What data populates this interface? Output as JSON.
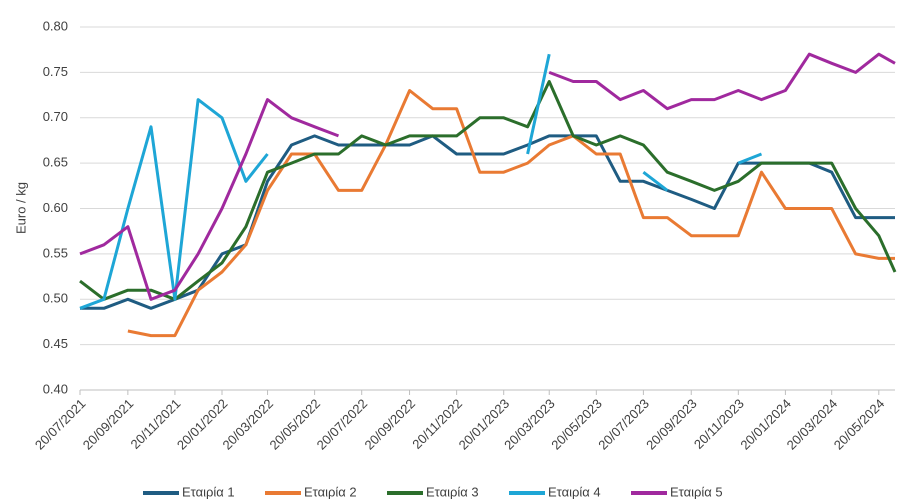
{
  "chart_data": {
    "type": "line",
    "y_label": "Euro / kg",
    "x": [
      "20/07/2021",
      "20/08/2021",
      "20/09/2021",
      "20/10/2021",
      "20/11/2021",
      "20/12/2021",
      "20/01/2022",
      "20/02/2022",
      "20/03/2022",
      "20/04/2022",
      "20/05/2022",
      "20/06/2022",
      "20/07/2022",
      "20/08/2022",
      "20/09/2022",
      "20/10/2022",
      "20/11/2022",
      "20/12/2022",
      "20/01/2023",
      "20/02/2023",
      "20/03/2023",
      "20/04/2023",
      "20/05/2023",
      "20/06/2023",
      "20/07/2023",
      "20/08/2023",
      "20/09/2023",
      "20/10/2023",
      "20/11/2023",
      "20/12/2023",
      "20/01/2024",
      "20/02/2024",
      "20/03/2024",
      "20/04/2024",
      "20/05/2024",
      "10/06/2024"
    ],
    "series": [
      {
        "name": "Εταιρία 1",
        "color": "#1f5c82",
        "values": [
          0.49,
          0.49,
          0.5,
          0.49,
          0.5,
          0.51,
          0.55,
          0.56,
          0.63,
          0.67,
          0.68,
          0.67,
          0.67,
          0.67,
          0.67,
          0.68,
          0.66,
          0.66,
          0.66,
          0.67,
          0.68,
          0.68,
          0.68,
          0.63,
          0.63,
          0.62,
          0.61,
          0.6,
          0.65,
          0.65,
          0.65,
          0.65,
          0.64,
          0.59,
          0.59,
          0.59
        ]
      },
      {
        "name": "Εταιρία 2",
        "color": "#e97a33",
        "values": [
          null,
          null,
          0.465,
          0.46,
          0.46,
          0.51,
          0.53,
          0.56,
          0.62,
          0.66,
          0.66,
          0.62,
          0.62,
          0.67,
          0.73,
          0.71,
          0.71,
          0.64,
          0.64,
          0.65,
          0.67,
          0.68,
          0.66,
          0.66,
          0.59,
          0.59,
          0.57,
          0.57,
          0.57,
          0.64,
          0.6,
          0.6,
          0.6,
          0.55,
          0.545,
          0.545
        ]
      },
      {
        "name": "Εταιρία 3",
        "color": "#2b6e2b",
        "values": [
          0.52,
          0.5,
          0.51,
          0.51,
          0.5,
          0.52,
          0.54,
          0.58,
          0.64,
          0.65,
          0.66,
          0.66,
          0.68,
          0.67,
          0.68,
          0.68,
          0.68,
          0.7,
          0.7,
          0.69,
          0.74,
          0.68,
          0.67,
          0.68,
          0.67,
          0.64,
          0.63,
          0.62,
          0.63,
          0.65,
          0.65,
          0.65,
          0.65,
          0.6,
          0.57,
          0.53
        ]
      },
      {
        "name": "Εταιρία 4",
        "color": "#1ea6d6",
        "values": [
          0.49,
          0.5,
          0.6,
          0.69,
          0.5,
          0.72,
          0.7,
          0.63,
          0.66,
          null,
          null,
          null,
          null,
          null,
          null,
          null,
          null,
          null,
          null,
          0.66,
          0.77,
          null,
          null,
          null,
          0.64,
          0.62,
          null,
          null,
          0.65,
          0.66,
          null,
          null,
          null,
          null,
          null,
          null
        ]
      },
      {
        "name": "Εταιρία 5",
        "color": "#a0299e",
        "values": [
          0.55,
          0.56,
          0.58,
          0.5,
          0.51,
          0.55,
          0.6,
          0.66,
          0.72,
          0.7,
          0.69,
          0.68,
          null,
          null,
          null,
          null,
          null,
          null,
          null,
          null,
          0.75,
          0.74,
          0.74,
          0.72,
          0.73,
          0.71,
          0.72,
          0.72,
          0.73,
          0.72,
          0.73,
          0.77,
          0.76,
          0.75,
          0.77,
          0.76
        ]
      }
    ],
    "xlim": [
      "20/07/2021",
      "10/06/2024"
    ],
    "xticks": [
      "20/07/2021",
      "20/09/2021",
      "20/11/2021",
      "20/01/2022",
      "20/03/2022",
      "20/05/2022",
      "20/07/2022",
      "20/09/2022",
      "20/11/2022",
      "20/01/2023",
      "20/03/2023",
      "20/05/2023",
      "20/07/2023",
      "20/09/2023",
      "20/11/2023",
      "20/01/2024",
      "20/03/2024",
      "20/05/2024"
    ],
    "ylim": [
      0.4,
      0.8
    ],
    "yticks": [
      {
        "value": 0.4,
        "label": "0.40"
      },
      {
        "value": 0.45,
        "label": "0.45"
      },
      {
        "value": 0.5,
        "label": "0.50"
      },
      {
        "value": 0.55,
        "label": "0.55"
      },
      {
        "value": 0.6,
        "label": "0.60"
      },
      {
        "value": 0.65,
        "label": "0.65"
      },
      {
        "value": 0.7,
        "label": "0.70"
      },
      {
        "value": 0.75,
        "label": "0.75"
      },
      {
        "value": 0.8,
        "label": "0.80"
      }
    ],
    "grid": true
  }
}
